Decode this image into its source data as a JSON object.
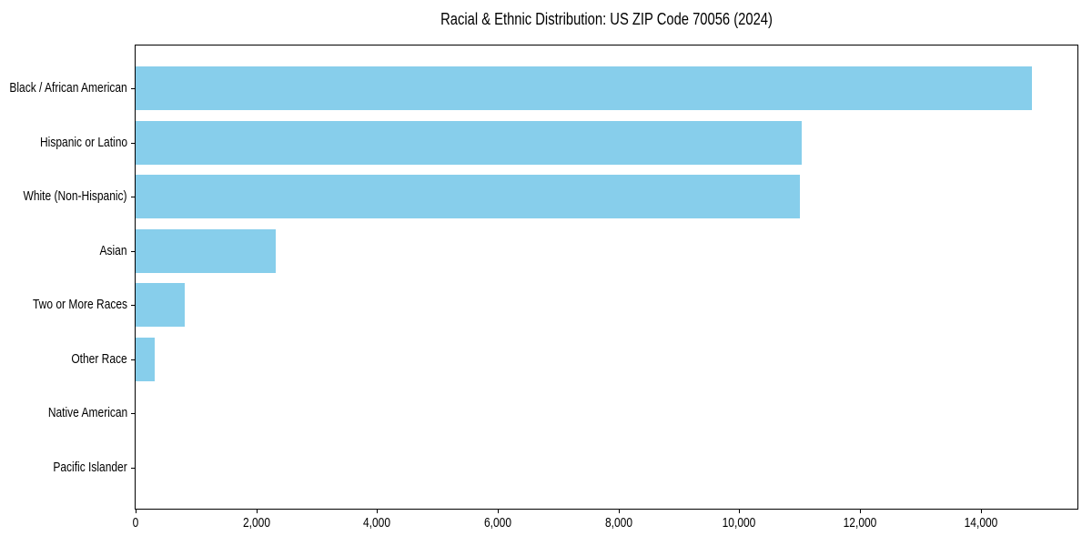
{
  "figure": {
    "title": "Racial & Ethnic Distribution: US ZIP Code 70056 (2024)"
  },
  "chart_data": {
    "type": "bar",
    "orientation": "horizontal",
    "title": "Racial & Ethnic Distribution: US ZIP Code 70056 (2024)",
    "categories": [
      "Black / African American",
      "Hispanic or Latino",
      "White (Non-Hispanic)",
      "Asian",
      "Two or More Races",
      "Other Race",
      "Native American",
      "Pacific Islander"
    ],
    "values": [
      14850,
      11040,
      11010,
      2320,
      815,
      310,
      0,
      0
    ],
    "xlabel": "",
    "ylabel": "",
    "xlim": [
      0,
      15600
    ],
    "xticks": [
      0,
      2000,
      4000,
      6000,
      8000,
      10000,
      12000,
      14000
    ],
    "xtick_labels": [
      "0",
      "2,000",
      "4,000",
      "6,000",
      "8,000",
      "10,000",
      "12,000",
      "14,000"
    ],
    "bar_color": "#87CEEB",
    "axis_color": "#000000",
    "text_color": "#000000",
    "background_color": "#FFFFFF",
    "grid": false,
    "legend": null
  }
}
